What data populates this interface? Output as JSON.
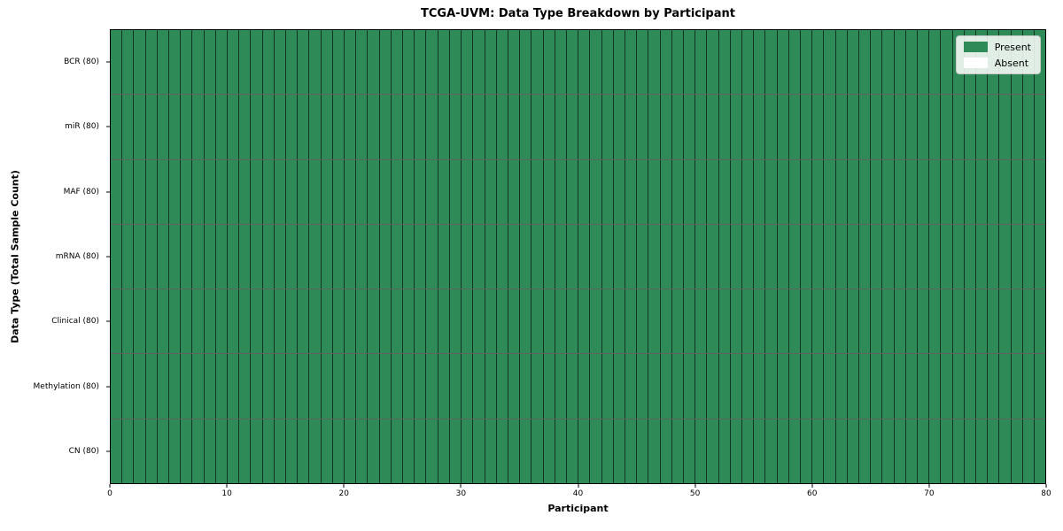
{
  "figure": {
    "title": "TCGA-UVM: Data Type Breakdown by Participant",
    "xlabel": "Participant",
    "ylabel": "Data Type (Total Sample Count)"
  },
  "chart_data": {
    "type": "heatmap",
    "title": "TCGA-UVM: Data Type Breakdown by Participant",
    "xlabel": "Participant",
    "ylabel": "Data Type (Total Sample Count)",
    "x_range": [
      0,
      80
    ],
    "n_participants": 80,
    "x_ticks": [
      0,
      10,
      20,
      30,
      40,
      50,
      60,
      70,
      80
    ],
    "rows": [
      {
        "label": "BCR (80)",
        "data_type": "BCR",
        "total_samples": 80,
        "present_count": 80,
        "absent_count": 0
      },
      {
        "label": "miR (80)",
        "data_type": "miR",
        "total_samples": 80,
        "present_count": 80,
        "absent_count": 0
      },
      {
        "label": "MAF (80)",
        "data_type": "MAF",
        "total_samples": 80,
        "present_count": 80,
        "absent_count": 0
      },
      {
        "label": "mRNA (80)",
        "data_type": "mRNA",
        "total_samples": 80,
        "present_count": 80,
        "absent_count": 0
      },
      {
        "label": "Clinical (80)",
        "data_type": "Clinical",
        "total_samples": 80,
        "present_count": 80,
        "absent_count": 0
      },
      {
        "label": "Methylation (80)",
        "data_type": "Methylation",
        "total_samples": 80,
        "present_count": 80,
        "absent_count": 0
      },
      {
        "label": "CN (80)",
        "data_type": "CN",
        "total_samples": 80,
        "present_count": 80,
        "absent_count": 0
      }
    ],
    "all_cells_state": "present",
    "colors": {
      "present": "#2e8b57",
      "absent": "#ffffff"
    },
    "legend": {
      "position": "upper right",
      "entries": [
        {
          "label": "Present",
          "color": "#2e8b57"
        },
        {
          "label": "Absent",
          "color": "#ffffff"
        }
      ]
    },
    "grid": "off"
  }
}
